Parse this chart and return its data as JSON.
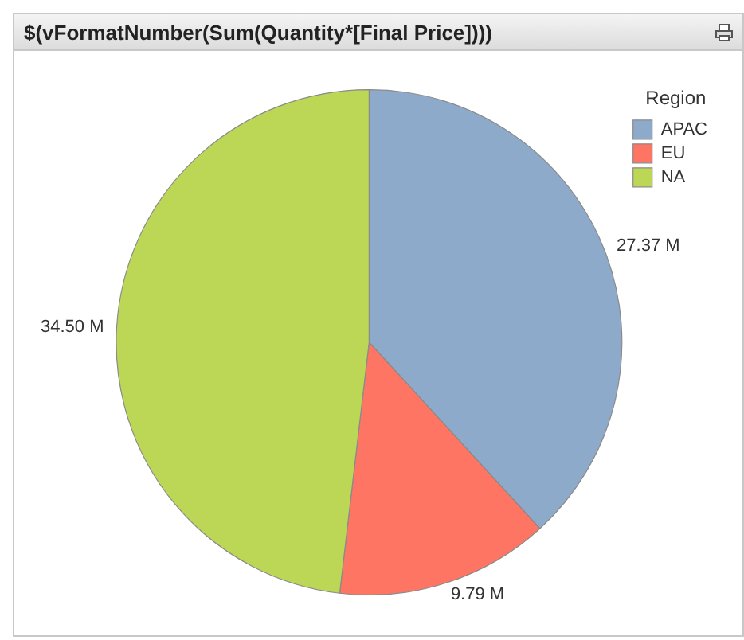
{
  "chart_data": {
    "type": "pie",
    "title": "$(vFormatNumber(Sum(Quantity*[Final Price])))",
    "categories": [
      "APAC",
      "EU",
      "NA"
    ],
    "values": [
      27.37,
      9.79,
      34.5
    ],
    "value_labels": [
      "27.37 M",
      "9.79 M",
      "34.50 M"
    ],
    "colors": [
      "#8eaacb",
      "#ff7563",
      "#bcd756"
    ],
    "legend": "top right",
    "legend_title": "Region"
  }
}
